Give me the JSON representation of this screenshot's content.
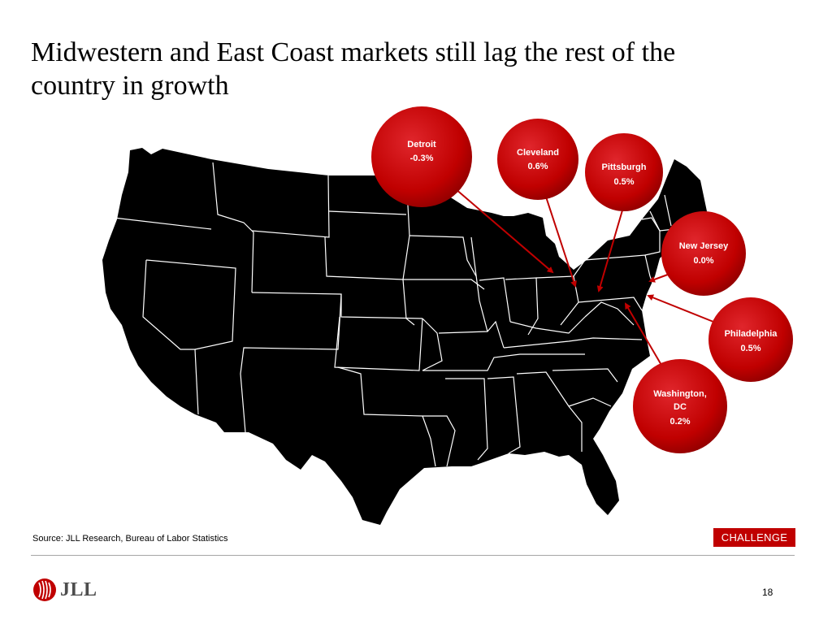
{
  "slide": {
    "title": "Midwestern and East Coast markets still lag the rest of the country in growth",
    "source": "Source: JLL Research, Bureau of Labor Statistics",
    "badge": "CHALLENGE",
    "page_number": "18",
    "logo_text": "JLL"
  },
  "colors": {
    "map_fill": "#000000",
    "state_border": "#ffffff",
    "bubble": "#c00000",
    "arrow": "#c00000",
    "badge": "#c00000"
  },
  "markets": [
    {
      "name": "Detroit",
      "lines": [
        "Detroit",
        "-0.3%"
      ],
      "growth_pct": -0.3
    },
    {
      "name": "Cleveland",
      "lines": [
        "Cleveland",
        "0.6%"
      ],
      "growth_pct": 0.6
    },
    {
      "name": "Pittsburgh",
      "lines": [
        "Pittsburgh",
        "0.5%"
      ],
      "growth_pct": 0.5
    },
    {
      "name": "New Jersey",
      "lines": [
        "New Jersey",
        "0.0%"
      ],
      "growth_pct": 0.0
    },
    {
      "name": "Philadelphia",
      "lines": [
        "Philadelphia",
        "0.5%"
      ],
      "growth_pct": 0.5
    },
    {
      "name": "Washington, DC",
      "lines": [
        "Washington,",
        "DC",
        "0.2%"
      ],
      "growth_pct": 0.2
    }
  ]
}
